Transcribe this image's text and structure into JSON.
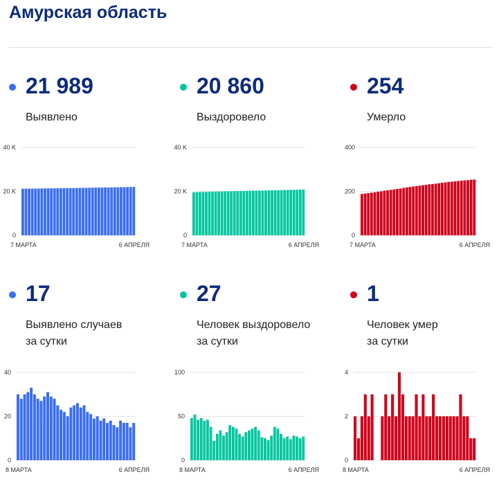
{
  "page": {
    "title": "Амурская область"
  },
  "panels": [
    {
      "dot_color": "#3b6ef5",
      "value": "21 989",
      "label_lines": [
        "Выявлено"
      ]
    },
    {
      "dot_color": "#00c6a0",
      "value": "20 860",
      "label_lines": [
        "Выздоровело"
      ]
    },
    {
      "dot_color": "#d0021b",
      "value": "254",
      "label_lines": [
        "Умерло"
      ]
    },
    {
      "dot_color": "#3b6ef5",
      "value": "17",
      "label_lines": [
        "Выявлено случаев",
        "за сутки"
      ]
    },
    {
      "dot_color": "#00c6a0",
      "value": "27",
      "label_lines": [
        "Человек выздоровело",
        "за сутки"
      ]
    },
    {
      "dot_color": "#d0021b",
      "value": "1",
      "label_lines": [
        "Человек умер",
        "за сутки"
      ]
    }
  ],
  "chart_data": [
    {
      "type": "bar",
      "color": "#3b6ef5",
      "ylim": [
        0,
        40000
      ],
      "yticks": [
        "40 K",
        "20 K",
        "0"
      ],
      "x_start_label": "7 МАРТА",
      "x_end_label": "6 АПРЕЛЯ",
      "values": [
        21200,
        21220,
        21240,
        21260,
        21290,
        21310,
        21330,
        21350,
        21370,
        21390,
        21410,
        21430,
        21450,
        21470,
        21490,
        21510,
        21530,
        21550,
        21570,
        21600,
        21620,
        21640,
        21660,
        21690,
        21710,
        21730,
        21760,
        21790,
        21820,
        21850,
        21880,
        21910,
        21930,
        21950,
        21970,
        21989
      ]
    },
    {
      "type": "bar",
      "color": "#00c6a0",
      "ylim": [
        0,
        40000
      ],
      "yticks": [
        "40 K",
        "20 K",
        "0"
      ],
      "x_start_label": "7 МАРТА",
      "x_end_label": "6 АПРЕЛЯ",
      "values": [
        19600,
        19650,
        19700,
        19740,
        19780,
        19820,
        19860,
        19900,
        19940,
        19980,
        20010,
        20050,
        20080,
        20110,
        20150,
        20180,
        20210,
        20240,
        20270,
        20300,
        20330,
        20360,
        20390,
        20420,
        20450,
        20480,
        20510,
        20540,
        20570,
        20600,
        20640,
        20680,
        20720,
        20760,
        20810,
        20860
      ]
    },
    {
      "type": "bar",
      "color": "#d0021b",
      "ylim": [
        0,
        400
      ],
      "yticks": [
        "400",
        "200",
        "0"
      ],
      "x_start_label": "7 МАРТА",
      "x_end_label": "6 АПРЕЛЯ",
      "values": [
        188,
        190,
        192,
        194,
        196,
        198,
        200,
        203,
        205,
        207,
        209,
        211,
        213,
        216,
        218,
        220,
        222,
        224,
        226,
        228,
        230,
        232,
        233,
        235,
        237,
        239,
        241,
        243,
        244,
        246,
        247,
        249,
        250,
        251,
        253,
        254
      ]
    },
    {
      "type": "bar",
      "color": "#3b6ef5",
      "ylim": [
        0,
        40
      ],
      "yticks": [
        "40",
        "20",
        "0"
      ],
      "x_start_label": "8 МАРТА",
      "x_end_label": "6 АПРЕЛЯ",
      "values": [
        30,
        28,
        30,
        31,
        33,
        30,
        28,
        27,
        29,
        31,
        29,
        28,
        25,
        23,
        22,
        20,
        24,
        25,
        26,
        24,
        25,
        22,
        21,
        19,
        20,
        18,
        19,
        17,
        18,
        16,
        15,
        18,
        17,
        17,
        15,
        17
      ]
    },
    {
      "type": "bar",
      "color": "#00c6a0",
      "ylim": [
        0,
        100
      ],
      "yticks": [
        "100",
        "50",
        "0"
      ],
      "x_start_label": "8 МАРТА",
      "x_end_label": "6 АПРЕЛЯ",
      "values": [
        48,
        52,
        46,
        48,
        45,
        46,
        38,
        22,
        30,
        34,
        28,
        32,
        40,
        38,
        36,
        30,
        27,
        32,
        34,
        36,
        38,
        34,
        26,
        25,
        23,
        28,
        38,
        36,
        30,
        25,
        27,
        24,
        28,
        27,
        25,
        27
      ]
    },
    {
      "type": "bar",
      "color": "#d0021b",
      "ylim": [
        0,
        4
      ],
      "yticks": [
        "4",
        "2",
        "0"
      ],
      "x_start_label": "8 МАРТА",
      "x_end_label": "6 АПРЕЛЯ",
      "values": [
        2,
        1,
        2,
        3,
        2,
        3,
        0,
        0,
        2,
        3,
        2,
        3,
        2,
        4,
        3,
        2,
        2,
        2,
        3,
        2,
        3,
        2,
        2,
        3,
        2,
        2,
        2,
        2,
        2,
        2,
        2,
        3,
        2,
        2,
        1,
        1
      ]
    }
  ]
}
